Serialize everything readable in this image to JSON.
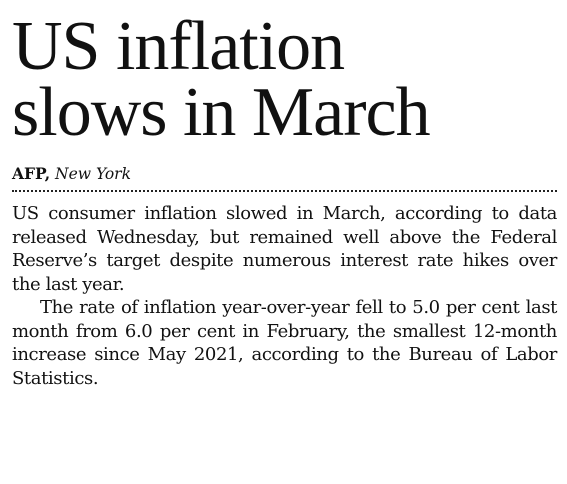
{
  "headline": {
    "line1": "US inflation",
    "line2": "slows in March"
  },
  "byline": {
    "agency": "AFP,",
    "location": "New York"
  },
  "body": {
    "paragraphs": [
      "US consumer inflation slowed in March, according to data released Wednesday, but remained well above the Federal Reserve’s target despite numerous interest rate hikes over the last year.",
      "The rate of inflation year-over-year fell to 5.0 per cent last month from 6.0 per cent in February, the smallest 12-month increase since May 2021, according to the Bureau of Labor Statistics."
    ]
  }
}
